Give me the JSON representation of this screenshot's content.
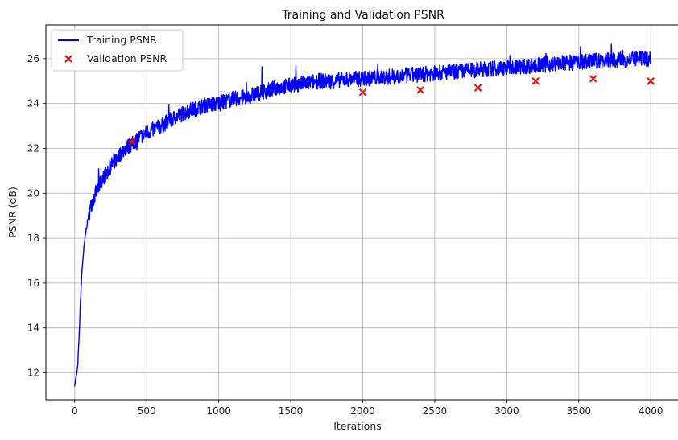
{
  "chart_data": {
    "type": "line",
    "title": "Training and Validation PSNR",
    "xlabel": "Iterations",
    "ylabel": "PSNR (dB)",
    "xlim": [
      -200,
      4200
    ],
    "ylim": [
      10.8,
      27.5
    ],
    "xticks": [
      0,
      500,
      1000,
      1500,
      2000,
      2500,
      3000,
      3500,
      4000
    ],
    "yticks": [
      12,
      14,
      16,
      18,
      20,
      22,
      24,
      26
    ],
    "grid": true,
    "legend_position": "top-left",
    "series": [
      {
        "name": "Training PSNR",
        "kind": "line",
        "color": "#0000ff",
        "x": [
          0,
          10,
          20,
          30,
          40,
          50,
          60,
          70,
          80,
          90,
          100,
          120,
          140,
          160,
          180,
          200,
          250,
          300,
          350,
          400,
          450,
          500,
          600,
          700,
          800,
          900,
          1000,
          1100,
          1200,
          1300,
          1400,
          1500,
          1600,
          1700,
          1800,
          1900,
          2000,
          2200,
          2400,
          2600,
          2800,
          3000,
          3200,
          3400,
          3600,
          3800,
          4000
        ],
        "y": [
          11.5,
          11.8,
          12.2,
          13.5,
          15.2,
          16.5,
          17.3,
          17.9,
          18.4,
          18.8,
          19.1,
          19.6,
          19.9,
          20.2,
          20.5,
          20.7,
          21.2,
          21.6,
          22.0,
          22.2,
          22.5,
          22.7,
          23.0,
          23.4,
          23.7,
          23.9,
          24.0,
          24.2,
          24.3,
          24.5,
          24.7,
          24.8,
          24.9,
          25.0,
          25.0,
          25.1,
          25.1,
          25.2,
          25.3,
          25.4,
          25.5,
          25.6,
          25.7,
          25.8,
          25.9,
          25.95,
          26.0
        ],
        "noise_amplitude": 0.35
      },
      {
        "name": "Validation PSNR",
        "kind": "scatter",
        "marker": "x",
        "color": "#ff0000",
        "x": [
          400,
          2000,
          2400,
          2800,
          3200,
          3600,
          4000
        ],
        "y": [
          22.3,
          24.5,
          24.6,
          24.7,
          25.0,
          25.1,
          25.0
        ]
      }
    ]
  }
}
